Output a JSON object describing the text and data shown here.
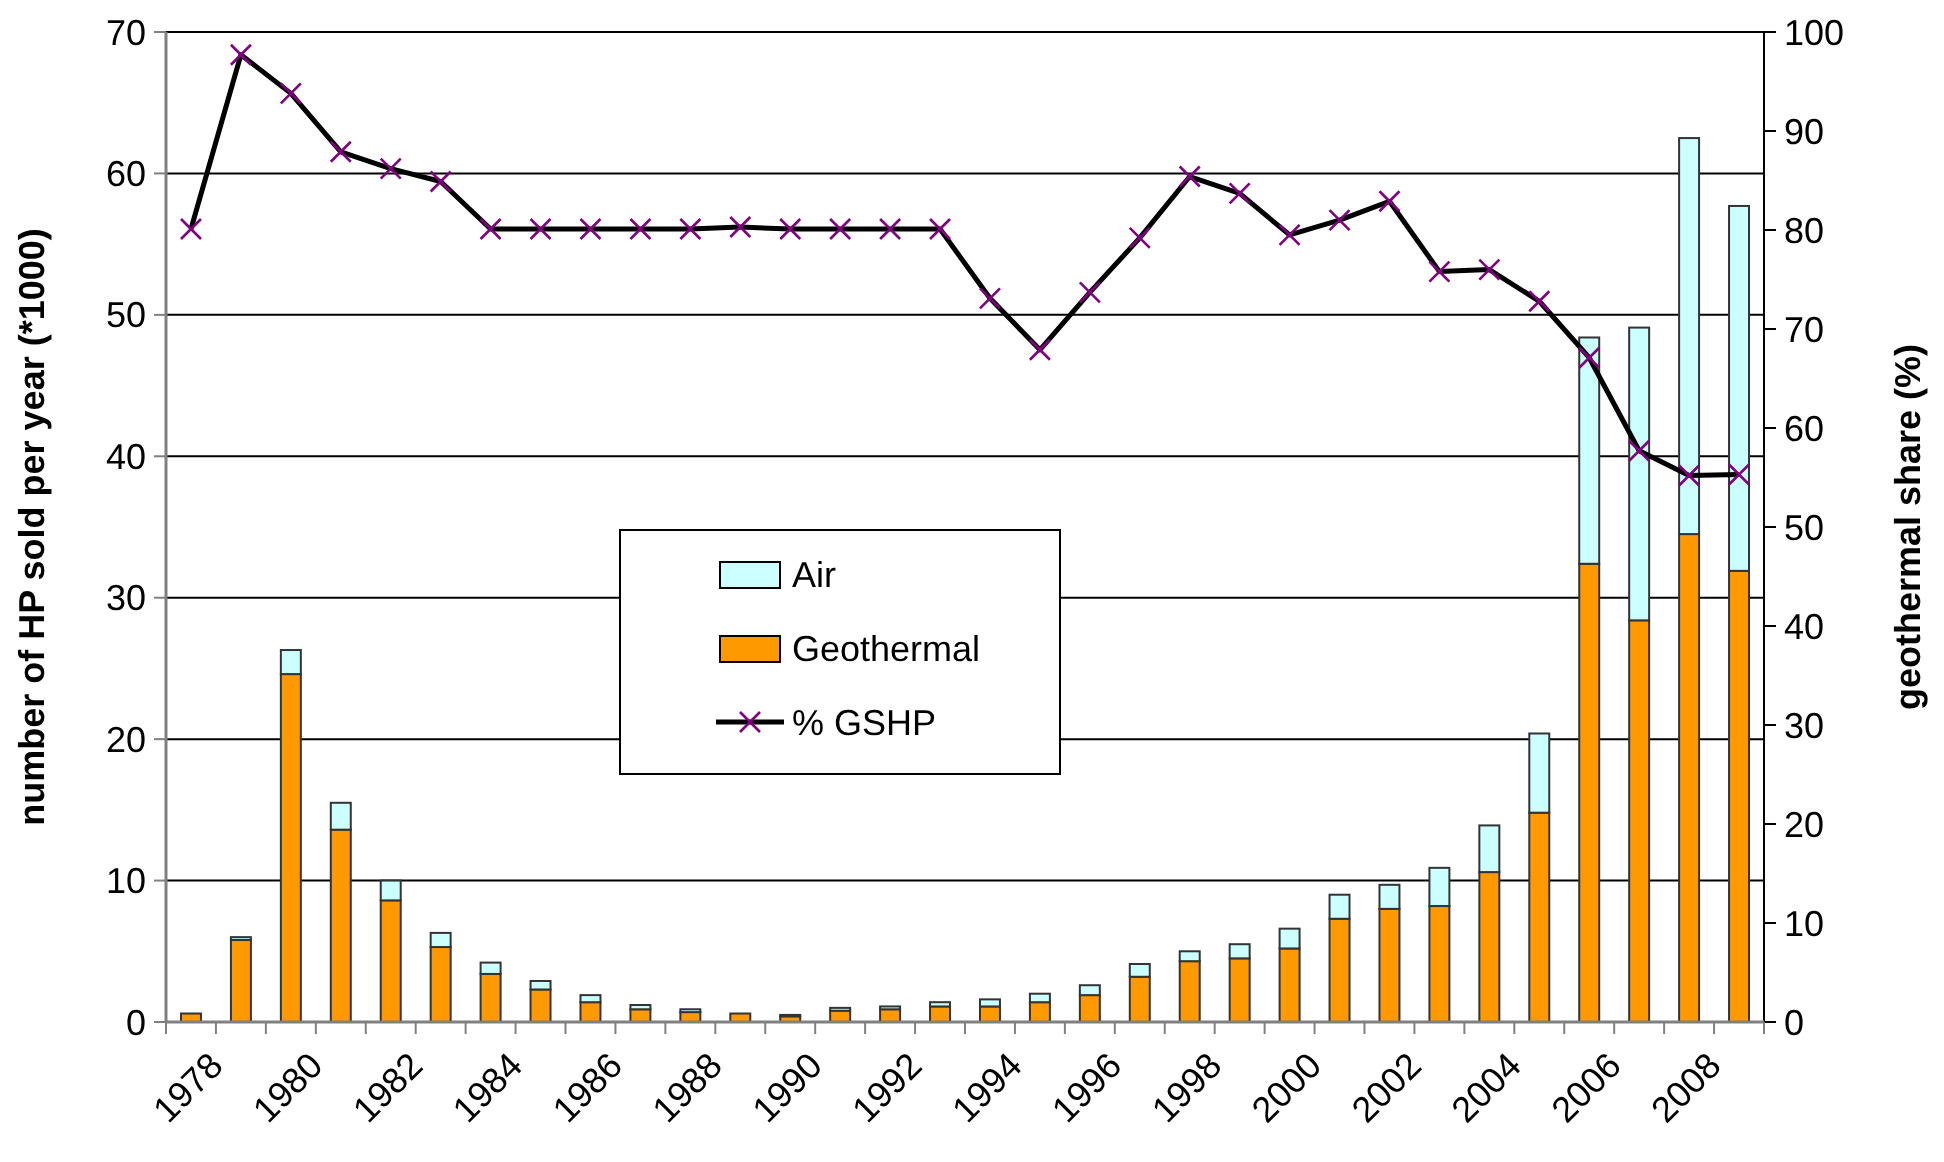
{
  "chart_data": {
    "type": "bar",
    "stacked": true,
    "categories": [
      "1978",
      null,
      "1980",
      null,
      "1982",
      null,
      "1984",
      null,
      "1986",
      null,
      "1988",
      null,
      "1990",
      null,
      "1992",
      null,
      "1994",
      null,
      "1996",
      null,
      "1998",
      null,
      "2000",
      null,
      "2002",
      null,
      "2004",
      null,
      "2006",
      null,
      "2008",
      null
    ],
    "series": [
      {
        "name": "Geothermal",
        "color": "#ff9900",
        "values": [
          0.6,
          5.8,
          24.6,
          13.6,
          8.6,
          5.3,
          3.4,
          2.3,
          1.4,
          0.9,
          0.7,
          0.6,
          0.4,
          0.8,
          0.9,
          1.1,
          1.1,
          1.4,
          1.9,
          3.2,
          4.3,
          4.5,
          5.2,
          7.3,
          8.0,
          8.2,
          10.6,
          14.8,
          32.4,
          28.4,
          34.5,
          31.9
        ]
      },
      {
        "name": "Air",
        "color": "#ccffff",
        "values": [
          null,
          0.2,
          1.7,
          1.9,
          1.4,
          1.0,
          0.8,
          0.6,
          0.5,
          0.3,
          0.2,
          null,
          0.1,
          0.2,
          0.2,
          0.3,
          0.5,
          0.6,
          0.7,
          0.9,
          0.7,
          1.0,
          1.4,
          1.7,
          1.7,
          2.7,
          3.3,
          5.6,
          16.0,
          20.7,
          28.0,
          25.8
        ]
      },
      {
        "name": "% GSHP",
        "type": "line",
        "axis": "y2",
        "color": "#000000",
        "marker": "cross",
        "values": [
          80.1,
          97.7,
          93.8,
          87.9,
          86.2,
          84.9,
          80.1,
          80.1,
          80.1,
          80.1,
          80.1,
          80.3,
          80.1,
          80.1,
          80.1,
          80.1,
          73.1,
          67.9,
          73.7,
          79.2,
          85.4,
          83.7,
          79.5,
          81.0,
          82.9,
          75.8,
          76.0,
          72.8,
          67.1,
          57.7,
          55.2,
          55.3
        ]
      }
    ],
    "ylabel": "number of HP sold per year (*1000)",
    "y2label": "geothermal share (%)",
    "ylim": [
      0,
      70
    ],
    "yticks": [
      0,
      10,
      20,
      30,
      40,
      50,
      60,
      70
    ],
    "y2lim": [
      0,
      100
    ],
    "y2ticks": [
      0,
      10,
      20,
      30,
      40,
      50,
      60,
      70,
      80,
      90,
      100
    ],
    "grid": "y",
    "legend": "center"
  }
}
